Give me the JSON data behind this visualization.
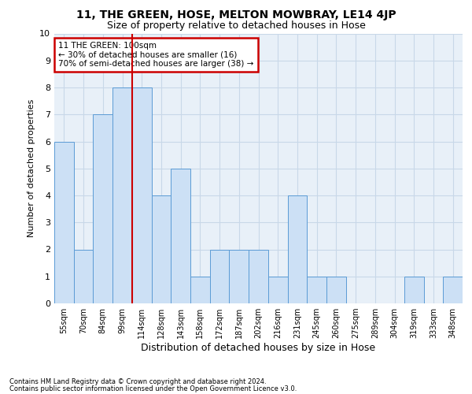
{
  "title": "11, THE GREEN, HOSE, MELTON MOWBRAY, LE14 4JP",
  "subtitle": "Size of property relative to detached houses in Hose",
  "xlabel": "Distribution of detached houses by size in Hose",
  "ylabel": "Number of detached properties",
  "footer1": "Contains HM Land Registry data © Crown copyright and database right 2024.",
  "footer2": "Contains public sector information licensed under the Open Government Licence v3.0.",
  "bin_labels": [
    "55sqm",
    "70sqm",
    "84sqm",
    "99sqm",
    "114sqm",
    "128sqm",
    "143sqm",
    "158sqm",
    "172sqm",
    "187sqm",
    "202sqm",
    "216sqm",
    "231sqm",
    "245sqm",
    "260sqm",
    "275sqm",
    "289sqm",
    "304sqm",
    "319sqm",
    "333sqm",
    "348sqm"
  ],
  "values": [
    6,
    2,
    7,
    8,
    8,
    4,
    5,
    1,
    2,
    2,
    2,
    1,
    4,
    1,
    1,
    0,
    0,
    0,
    1,
    0,
    1
  ],
  "bar_color": "#cce0f5",
  "bar_edge_color": "#5b9bd5",
  "highlight_line_index": 3,
  "annotation_line1": "11 THE GREEN: 100sqm",
  "annotation_line2": "← 30% of detached houses are smaller (16)",
  "annotation_line3": "70% of semi-detached houses are larger (38) →",
  "annotation_box_color": "#ffffff",
  "annotation_box_edge_color": "#cc0000",
  "ylim": [
    0,
    10
  ],
  "yticks": [
    0,
    1,
    2,
    3,
    4,
    5,
    6,
    7,
    8,
    9,
    10
  ],
  "grid_color": "#c8d8e8",
  "background_color": "#ffffff",
  "axes_bg_color": "#e8f0f8",
  "title_fontsize": 10,
  "subtitle_fontsize": 9,
  "ylabel_fontsize": 8,
  "xlabel_fontsize": 9
}
